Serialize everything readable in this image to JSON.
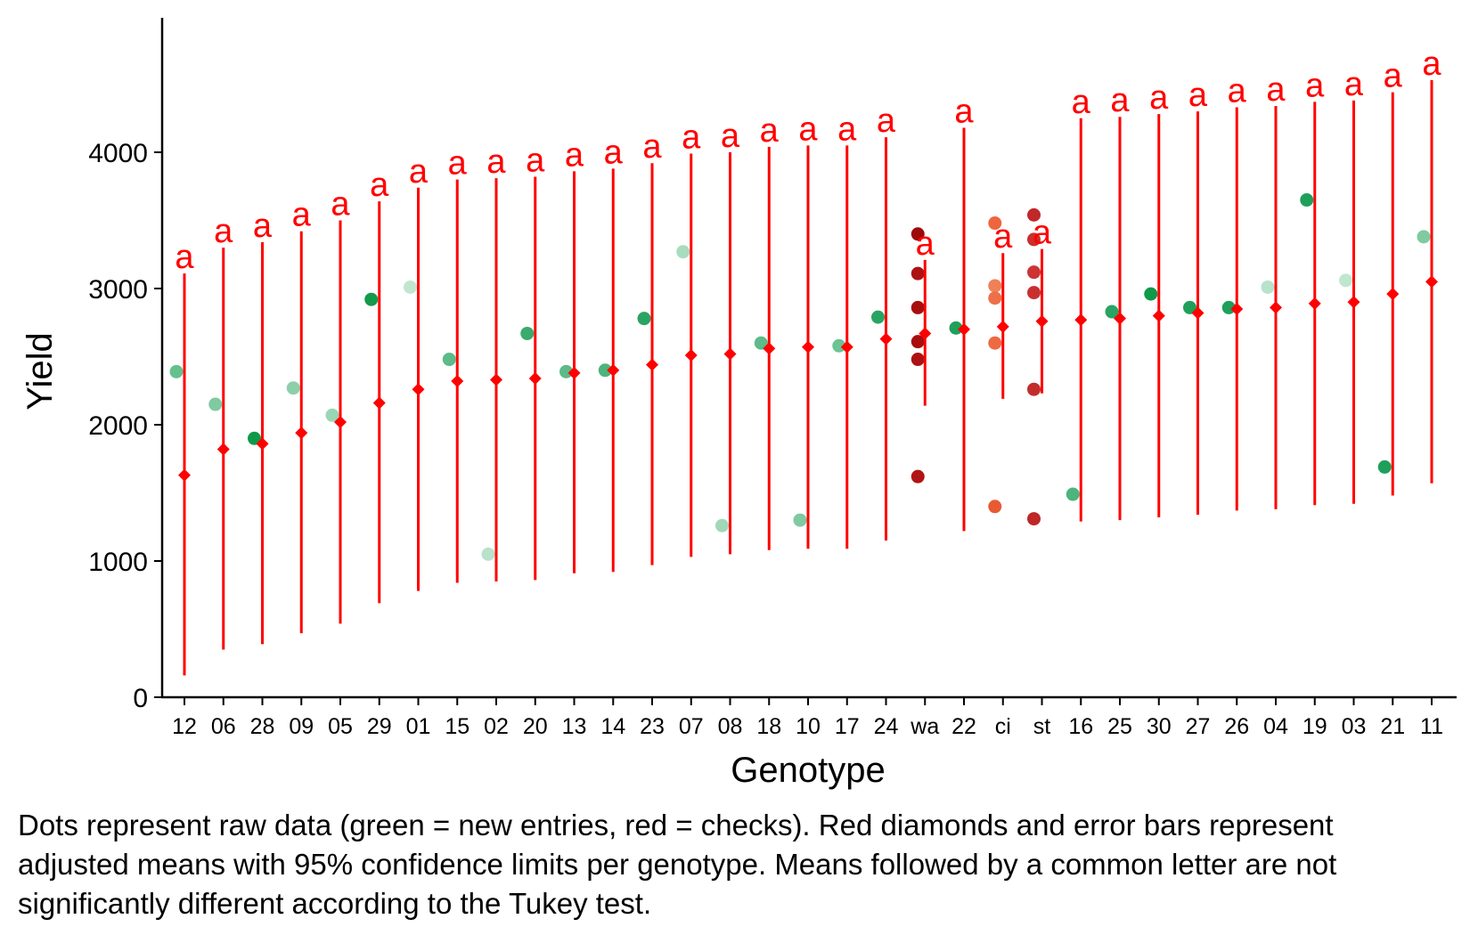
{
  "chart_data": {
    "type": "scatter",
    "xlabel": "Genotype",
    "ylabel": "Yield",
    "ylim": [
      0,
      4800
    ],
    "y_ticks": [
      0,
      1000,
      2000,
      3000,
      4000
    ],
    "grid": false,
    "legend": "none",
    "caption": "Dots represent raw data (green = new entries, red = checks). Red diamonds and error bars represent adjusted means with 95% confidence limits per genotype. Means followed by a common letter are not significantly different according to the Tukey test.",
    "colors": {
      "mean": "#ff0000",
      "letter": "#ff0000",
      "new_entry": "#00a050",
      "check_wa": "#b00000",
      "check_ci": "#e85030",
      "check_st": "#c82828"
    },
    "categories": [
      "12",
      "06",
      "28",
      "09",
      "05",
      "29",
      "01",
      "15",
      "02",
      "20",
      "13",
      "14",
      "23",
      "07",
      "08",
      "18",
      "10",
      "17",
      "24",
      "wa",
      "22",
      "ci",
      "st",
      "16",
      "25",
      "30",
      "27",
      "26",
      "04",
      "19",
      "03",
      "21",
      "11"
    ],
    "means": [
      {
        "genotype": "12",
        "mean": 1630,
        "lower": 160,
        "upper": 3110,
        "letter": "a"
      },
      {
        "genotype": "06",
        "mean": 1820,
        "lower": 350,
        "upper": 3300,
        "letter": "a"
      },
      {
        "genotype": "28",
        "mean": 1860,
        "lower": 390,
        "upper": 3340,
        "letter": "a"
      },
      {
        "genotype": "09",
        "mean": 1940,
        "lower": 470,
        "upper": 3420,
        "letter": "a"
      },
      {
        "genotype": "05",
        "mean": 2020,
        "lower": 540,
        "upper": 3500,
        "letter": "a"
      },
      {
        "genotype": "29",
        "mean": 2160,
        "lower": 690,
        "upper": 3640,
        "letter": "a"
      },
      {
        "genotype": "01",
        "mean": 2260,
        "lower": 780,
        "upper": 3740,
        "letter": "a"
      },
      {
        "genotype": "15",
        "mean": 2320,
        "lower": 840,
        "upper": 3800,
        "letter": "a"
      },
      {
        "genotype": "02",
        "mean": 2330,
        "lower": 850,
        "upper": 3810,
        "letter": "a"
      },
      {
        "genotype": "20",
        "mean": 2340,
        "lower": 860,
        "upper": 3820,
        "letter": "a"
      },
      {
        "genotype": "13",
        "mean": 2380,
        "lower": 910,
        "upper": 3860,
        "letter": "a"
      },
      {
        "genotype": "14",
        "mean": 2400,
        "lower": 920,
        "upper": 3880,
        "letter": "a"
      },
      {
        "genotype": "23",
        "mean": 2440,
        "lower": 970,
        "upper": 3920,
        "letter": "a"
      },
      {
        "genotype": "07",
        "mean": 2510,
        "lower": 1030,
        "upper": 3990,
        "letter": "a"
      },
      {
        "genotype": "08",
        "mean": 2520,
        "lower": 1050,
        "upper": 4000,
        "letter": "a"
      },
      {
        "genotype": "18",
        "mean": 2560,
        "lower": 1080,
        "upper": 4040,
        "letter": "a"
      },
      {
        "genotype": "10",
        "mean": 2570,
        "lower": 1090,
        "upper": 4050,
        "letter": "a"
      },
      {
        "genotype": "17",
        "mean": 2570,
        "lower": 1090,
        "upper": 4050,
        "letter": "a"
      },
      {
        "genotype": "24",
        "mean": 2630,
        "lower": 1150,
        "upper": 4110,
        "letter": "a"
      },
      {
        "genotype": "wa",
        "mean": 2670,
        "lower": 2140,
        "upper": 3210,
        "letter": "a"
      },
      {
        "genotype": "22",
        "mean": 2700,
        "lower": 1220,
        "upper": 4180,
        "letter": "a"
      },
      {
        "genotype": "ci",
        "mean": 2720,
        "lower": 2190,
        "upper": 3260,
        "letter": "a"
      },
      {
        "genotype": "st",
        "mean": 2760,
        "lower": 2230,
        "upper": 3290,
        "letter": "a"
      },
      {
        "genotype": "16",
        "mean": 2770,
        "lower": 1290,
        "upper": 4250,
        "letter": "a"
      },
      {
        "genotype": "25",
        "mean": 2780,
        "lower": 1300,
        "upper": 4260,
        "letter": "a"
      },
      {
        "genotype": "30",
        "mean": 2800,
        "lower": 1320,
        "upper": 4280,
        "letter": "a"
      },
      {
        "genotype": "27",
        "mean": 2820,
        "lower": 1340,
        "upper": 4300,
        "letter": "a"
      },
      {
        "genotype": "26",
        "mean": 2850,
        "lower": 1370,
        "upper": 4330,
        "letter": "a"
      },
      {
        "genotype": "04",
        "mean": 2860,
        "lower": 1380,
        "upper": 4340,
        "letter": "a"
      },
      {
        "genotype": "19",
        "mean": 2890,
        "lower": 1410,
        "upper": 4370,
        "letter": "a"
      },
      {
        "genotype": "03",
        "mean": 2900,
        "lower": 1420,
        "upper": 4380,
        "letter": "a"
      },
      {
        "genotype": "21",
        "mean": 2960,
        "lower": 1480,
        "upper": 4440,
        "letter": "a"
      },
      {
        "genotype": "11",
        "mean": 3050,
        "lower": 1570,
        "upper": 4530,
        "letter": "a"
      }
    ],
    "raw_points": [
      {
        "genotype": "12",
        "yield": 2390,
        "color": "#66c08e"
      },
      {
        "genotype": "06",
        "yield": 2150,
        "color": "#7fcaa0"
      },
      {
        "genotype": "28",
        "yield": 1900,
        "color": "#0e9a48"
      },
      {
        "genotype": "09",
        "yield": 2270,
        "color": "#8cd0aa"
      },
      {
        "genotype": "05",
        "yield": 2070,
        "color": "#99d6b4"
      },
      {
        "genotype": "29",
        "yield": 2920,
        "color": "#139a4b"
      },
      {
        "genotype": "01",
        "yield": 3010,
        "color": "#c0e6d0"
      },
      {
        "genotype": "15",
        "yield": 2480,
        "color": "#5cbb88"
      },
      {
        "genotype": "02",
        "yield": 1050,
        "color": "#b8e2ca"
      },
      {
        "genotype": "20",
        "yield": 2670,
        "color": "#3aab6c"
      },
      {
        "genotype": "13",
        "yield": 2390,
        "color": "#5cbb88"
      },
      {
        "genotype": "14",
        "yield": 2400,
        "color": "#4cb47c"
      },
      {
        "genotype": "23",
        "yield": 2780,
        "color": "#2aa462"
      },
      {
        "genotype": "07",
        "yield": 3270,
        "color": "#a8dcbe"
      },
      {
        "genotype": "08",
        "yield": 1260,
        "color": "#a0d8b8"
      },
      {
        "genotype": "18",
        "yield": 2600,
        "color": "#5cbb88"
      },
      {
        "genotype": "10",
        "yield": 1300,
        "color": "#7fcaa0"
      },
      {
        "genotype": "17",
        "yield": 2580,
        "color": "#6cc394"
      },
      {
        "genotype": "24",
        "yield": 2790,
        "color": "#2aa462"
      },
      {
        "genotype": "wa",
        "yield": 3400,
        "color": "#9c0a0a"
      },
      {
        "genotype": "wa",
        "yield": 3110,
        "color": "#ad1212"
      },
      {
        "genotype": "wa",
        "yield": 2860,
        "color": "#a80e0e"
      },
      {
        "genotype": "wa",
        "yield": 2610,
        "color": "#a80e0e"
      },
      {
        "genotype": "wa",
        "yield": 2480,
        "color": "#ad1212"
      },
      {
        "genotype": "wa",
        "yield": 1620,
        "color": "#b01515"
      },
      {
        "genotype": "22",
        "yield": 2710,
        "color": "#1ea05a"
      },
      {
        "genotype": "ci",
        "yield": 3480,
        "color": "#ef6540"
      },
      {
        "genotype": "ci",
        "yield": 3020,
        "color": "#f08058"
      },
      {
        "genotype": "ci",
        "yield": 2930,
        "color": "#ee7048"
      },
      {
        "genotype": "ci",
        "yield": 2600,
        "color": "#ee6a44"
      },
      {
        "genotype": "ci",
        "yield": 1400,
        "color": "#e85a34"
      },
      {
        "genotype": "st",
        "yield": 3540,
        "color": "#c0282a"
      },
      {
        "genotype": "st",
        "yield": 3360,
        "color": "#c83030"
      },
      {
        "genotype": "st",
        "yield": 3120,
        "color": "#cc3434"
      },
      {
        "genotype": "st",
        "yield": 2970,
        "color": "#c83030"
      },
      {
        "genotype": "st",
        "yield": 2260,
        "color": "#c42c2c"
      },
      {
        "genotype": "st",
        "yield": 1310,
        "color": "#bf2626"
      },
      {
        "genotype": "16",
        "yield": 1490,
        "color": "#4cb47c"
      },
      {
        "genotype": "25",
        "yield": 2830,
        "color": "#2aa462"
      },
      {
        "genotype": "30",
        "yield": 2960,
        "color": "#0e9a48"
      },
      {
        "genotype": "27",
        "yield": 2860,
        "color": "#1ea05a"
      },
      {
        "genotype": "26",
        "yield": 2860,
        "color": "#1ea05a"
      },
      {
        "genotype": "04",
        "yield": 3010,
        "color": "#b8e2ca"
      },
      {
        "genotype": "19",
        "yield": 3650,
        "color": "#1ea05a"
      },
      {
        "genotype": "03",
        "yield": 3060,
        "color": "#c0e6d0"
      },
      {
        "genotype": "21",
        "yield": 1690,
        "color": "#1ea05a"
      },
      {
        "genotype": "11",
        "yield": 3380,
        "color": "#7fcaa0"
      }
    ]
  }
}
